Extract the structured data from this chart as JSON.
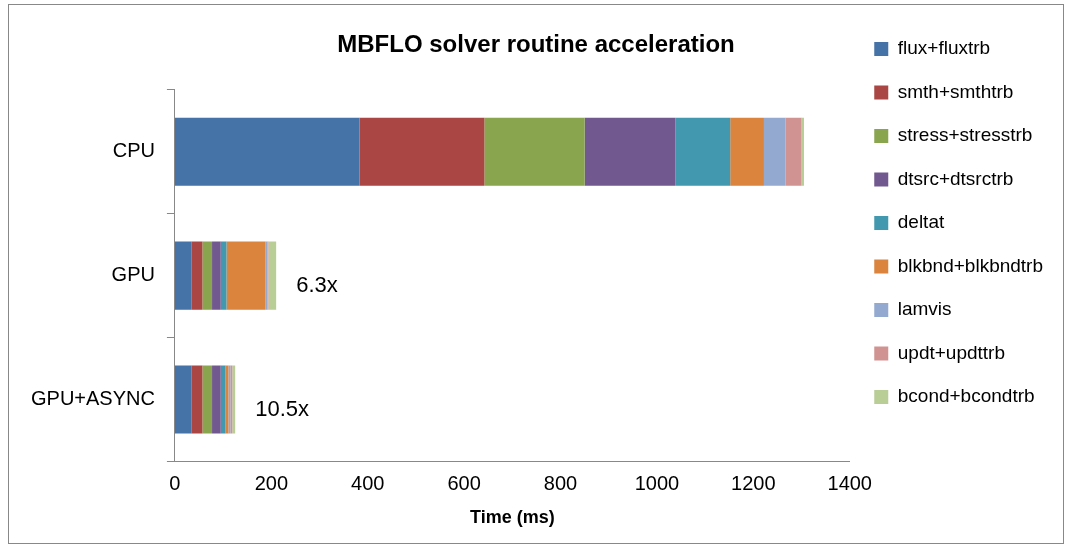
{
  "chart_data": {
    "type": "bar",
    "orientation": "horizontal",
    "stacked": true,
    "title": "MBFLO solver routine acceleration",
    "xlabel": "Time (ms)",
    "categories": [
      "CPU",
      "GPU",
      "GPU+ASYNC"
    ],
    "series": [
      {
        "name": "flux+fluxtrb",
        "color": "#4572a7",
        "values": [
          383,
          34,
          34
        ]
      },
      {
        "name": "smth+smthtrb",
        "color": "#aa4643",
        "values": [
          259,
          23,
          23
        ]
      },
      {
        "name": "stress+stresstrb",
        "color": "#89a54e",
        "values": [
          208,
          20,
          20
        ]
      },
      {
        "name": "dtsrc+dtsrctrb",
        "color": "#71588f",
        "values": [
          188,
          18,
          18
        ]
      },
      {
        "name": "deltat",
        "color": "#4198af",
        "values": [
          114,
          12,
          10
        ]
      },
      {
        "name": "blkbnd+blkbndtrb",
        "color": "#db843d",
        "values": [
          70,
          81,
          6
        ]
      },
      {
        "name": "lamvis",
        "color": "#93a9cf",
        "values": [
          45,
          4,
          4
        ]
      },
      {
        "name": "updt+updttrb",
        "color": "#d19392",
        "values": [
          33,
          2,
          4
        ]
      },
      {
        "name": "bcond+bcondtrb",
        "color": "#b9cd96",
        "values": [
          5,
          16,
          6
        ]
      }
    ],
    "annotations": [
      {
        "text": "6.3x",
        "x": 210,
        "y": "GPU"
      },
      {
        "text": "10.5x",
        "x": 125,
        "y": "GPU+ASYNC"
      }
    ],
    "xlim": [
      0,
      1400
    ],
    "xticks": [
      0,
      200,
      400,
      600,
      800,
      1000,
      1200,
      1400
    ],
    "grid": false,
    "legend": "right"
  }
}
